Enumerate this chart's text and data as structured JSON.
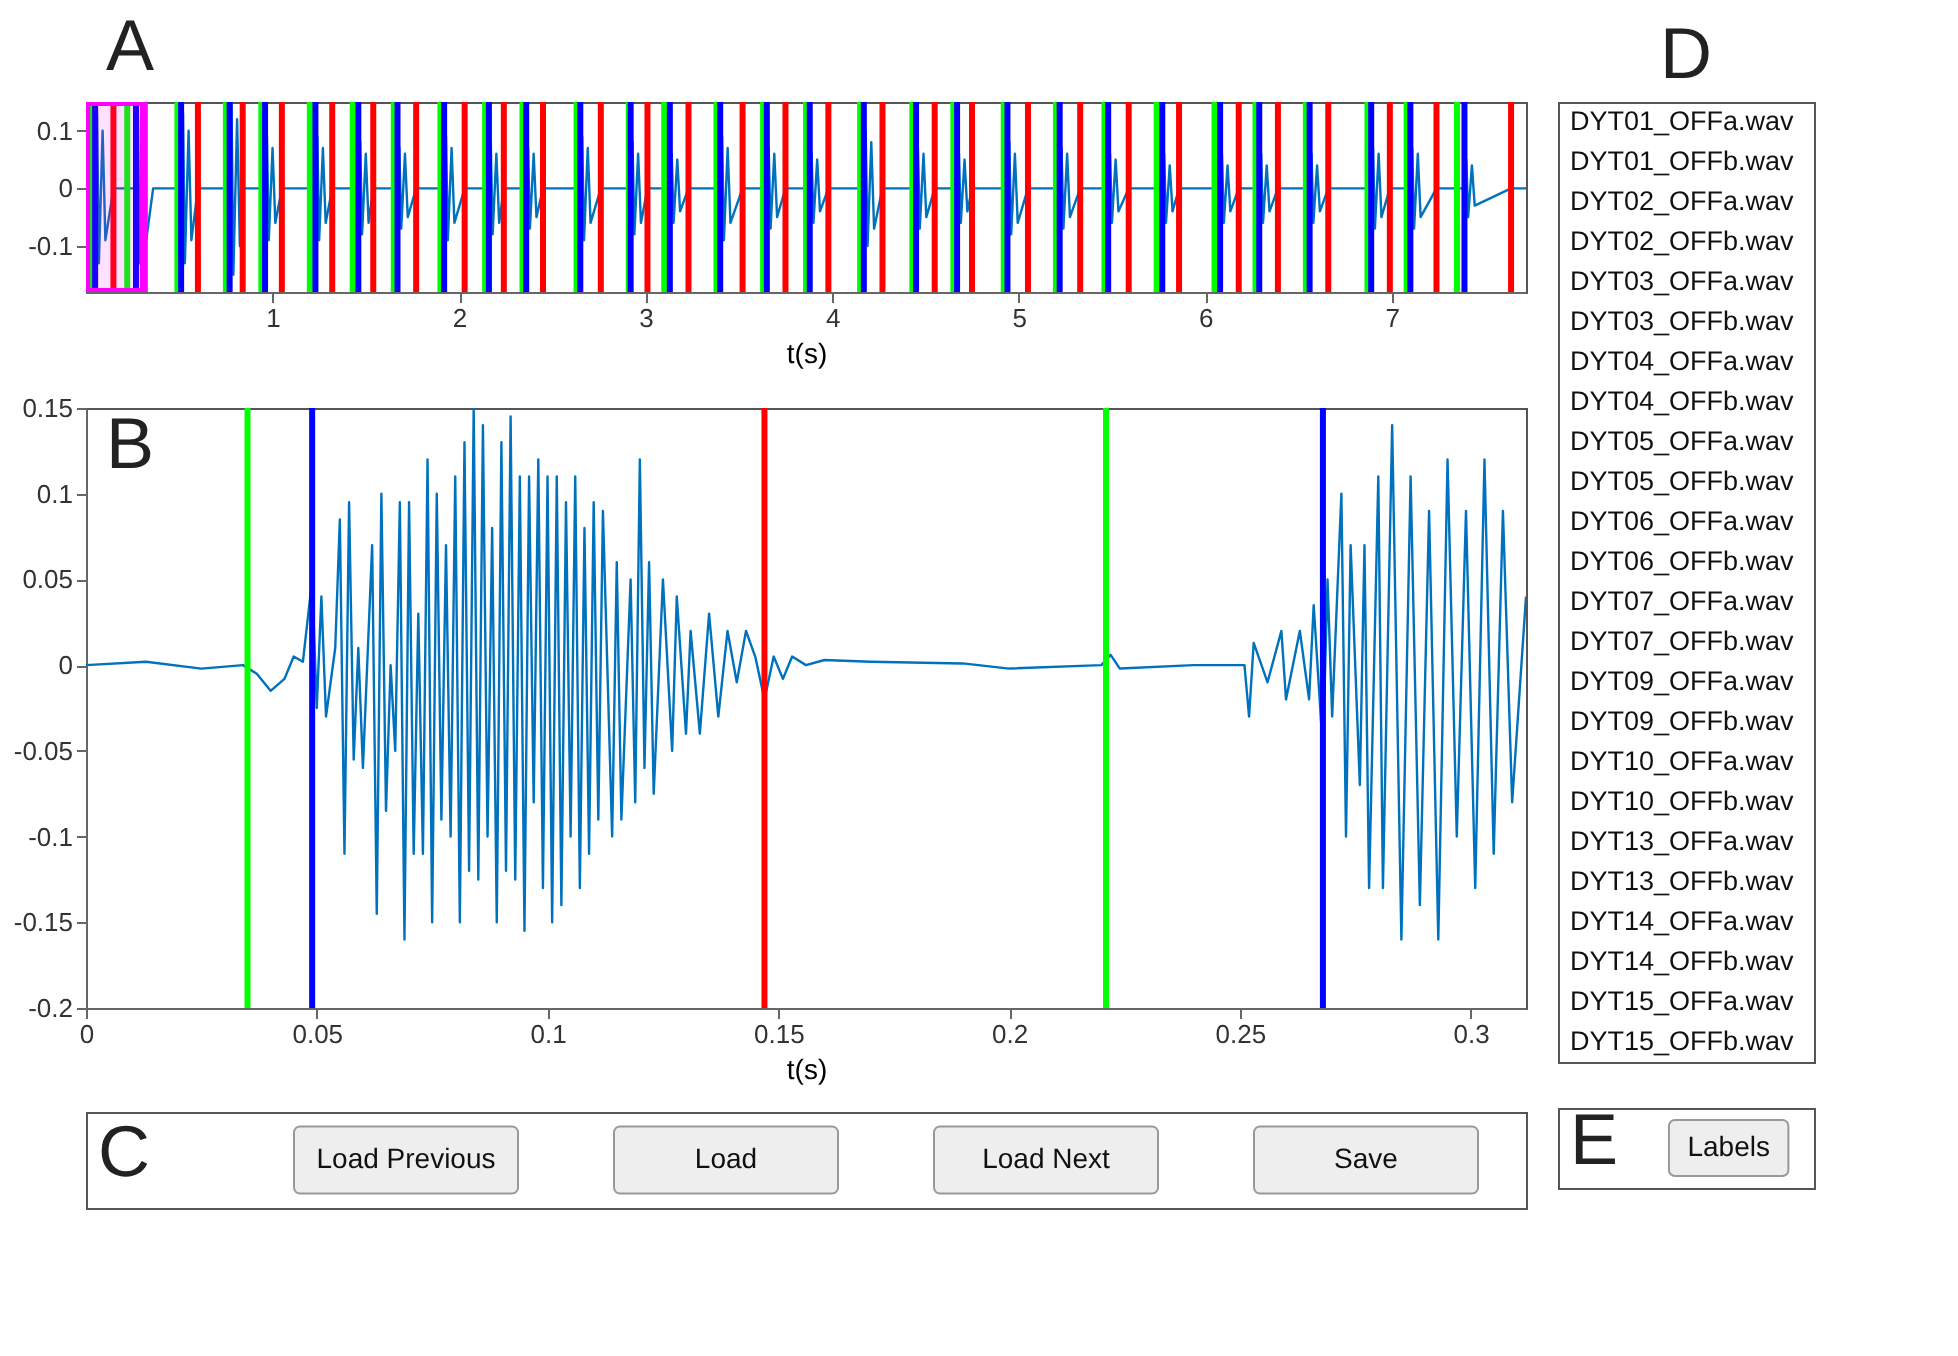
{
  "chart_data": [
    {
      "type": "line",
      "annotations": [
        "A"
      ],
      "xlabel": "t(s)",
      "xlim": [
        0,
        7.72
      ],
      "ylim": [
        -0.18,
        0.15
      ],
      "xticks": [
        1,
        2,
        3,
        4,
        5,
        6,
        7
      ],
      "yticks": [
        -0.1,
        0,
        0.1
      ],
      "grid": false,
      "series": [
        {
          "color": "#0072bd",
          "x": [
            0,
            0.049,
            0.059,
            0.069,
            0.089,
            0.104,
            0.147,
            0.268,
            0.278,
            0.288,
            0.308,
            0.323,
            0.36,
            0.51,
            0.52,
            0.53,
            0.55,
            0.565,
            0.6,
            0.77,
            0.78,
            0.79,
            0.81,
            0.825,
            0.84,
            0.96,
            0.97,
            0.98,
            1.0,
            1.015,
            1.05,
            1.23,
            1.24,
            1.25,
            1.27,
            1.285,
            1.32,
            1.46,
            1.47,
            1.48,
            1.5,
            1.515,
            1.54,
            1.67,
            1.68,
            1.69,
            1.71,
            1.725,
            1.77,
            1.92,
            1.93,
            1.94,
            1.96,
            1.975,
            2.03,
            2.16,
            2.17,
            2.18,
            2.2,
            2.215,
            2.24,
            2.36,
            2.37,
            2.38,
            2.4,
            2.415,
            2.45,
            2.65,
            2.66,
            2.67,
            2.69,
            2.705,
            2.76,
            2.92,
            2.93,
            2.94,
            2.96,
            2.975,
            3.01,
            3.13,
            3.14,
            3.15,
            3.17,
            3.185,
            3.23,
            3.4,
            3.41,
            3.42,
            3.44,
            3.455,
            3.52,
            3.65,
            3.66,
            3.67,
            3.69,
            3.705,
            3.75,
            3.88,
            3.89,
            3.9,
            3.92,
            3.935,
            3.98,
            4.17,
            4.18,
            4.19,
            4.21,
            4.225,
            4.27,
            4.45,
            4.46,
            4.47,
            4.49,
            4.505,
            4.55,
            4.67,
            4.68,
            4.69,
            4.71,
            4.725,
            4.75,
            4.94,
            4.95,
            4.96,
            4.98,
            4.995,
            5.05,
            5.22,
            5.23,
            5.24,
            5.26,
            5.275,
            5.33,
            5.48,
            5.49,
            5.5,
            5.52,
            5.535,
            5.59,
            5.77,
            5.78,
            5.79,
            5.81,
            5.825,
            5.86,
            6.08,
            6.09,
            6.1,
            6.12,
            6.135,
            6.18,
            6.29,
            6.3,
            6.31,
            6.33,
            6.345,
            6.39,
            6.56,
            6.57,
            6.58,
            6.6,
            6.615,
            6.66,
            6.89,
            6.9,
            6.91,
            6.93,
            6.945,
            6.99,
            7.1,
            7.11,
            7.12,
            7.14,
            7.155,
            7.24,
            7.39,
            7.4,
            7.41,
            7.43,
            7.445,
            7.64,
            7.72
          ],
          "values": [
            0,
            0,
            0.13,
            -0.13,
            0.1,
            -0.09,
            0,
            0,
            0.13,
            -0.13,
            0.1,
            -0.09,
            0,
            0,
            0.13,
            -0.13,
            0.1,
            -0.09,
            0,
            0,
            0.15,
            -0.15,
            0.12,
            -0.1,
            0,
            0,
            0.09,
            -0.09,
            0.07,
            -0.06,
            0,
            0,
            0.09,
            -0.09,
            0.07,
            -0.06,
            0,
            0,
            0.08,
            -0.08,
            0.06,
            -0.06,
            0,
            0,
            0.07,
            -0.07,
            0.06,
            -0.05,
            0,
            0,
            0.09,
            -0.09,
            0.07,
            -0.06,
            0,
            0,
            0.08,
            -0.08,
            0.06,
            -0.06,
            0,
            0,
            0.07,
            -0.07,
            0.06,
            -0.05,
            0,
            0,
            0.09,
            -0.09,
            0.07,
            -0.06,
            0,
            0,
            0.08,
            -0.08,
            0.06,
            -0.06,
            0,
            0,
            0.06,
            -0.06,
            0.05,
            -0.04,
            0,
            0,
            0.09,
            -0.09,
            0.07,
            -0.06,
            0,
            0,
            0.07,
            -0.07,
            0.06,
            -0.05,
            0,
            0,
            0.06,
            -0.06,
            0.05,
            -0.04,
            0,
            0,
            0.1,
            -0.1,
            0.08,
            -0.07,
            0,
            0,
            0.07,
            -0.07,
            0.06,
            -0.05,
            0,
            0,
            0.06,
            -0.06,
            0.05,
            -0.04,
            0,
            0,
            0.08,
            -0.08,
            0.06,
            -0.06,
            0,
            0,
            0.07,
            -0.07,
            0.06,
            -0.05,
            0,
            0,
            0.06,
            -0.06,
            0.05,
            -0.04,
            0,
            0,
            0.06,
            -0.06,
            0.04,
            -0.04,
            0,
            0,
            0.06,
            -0.06,
            0.04,
            -0.04,
            0,
            0,
            0.06,
            -0.06,
            0.04,
            -0.04,
            0,
            0,
            0.06,
            -0.06,
            0.04,
            -0.04,
            0,
            0,
            0.07,
            -0.07,
            0.06,
            -0.05,
            0,
            0,
            0.07,
            -0.07,
            0.06,
            -0.05,
            0,
            0,
            0.05,
            -0.05,
            0.04,
            -0.03,
            0,
            0
          ]
        }
      ],
      "bands": [
        {
          "axis": "x",
          "from": 0,
          "to": 0.31,
          "color": "#ff00ff"
        }
      ],
      "ref_lines": [
        {
          "axis": "x",
          "value": 0.035,
          "color": "#00ff00"
        },
        {
          "axis": "x",
          "value": 0.049,
          "color": "#0000ff"
        },
        {
          "axis": "x",
          "value": 0.147,
          "color": "#ff0000"
        },
        {
          "axis": "x",
          "value": 0.221,
          "color": "#00ff00"
        },
        {
          "axis": "x",
          "value": 0.268,
          "color": "#0000ff"
        },
        {
          "axis": "x",
          "value": 0.49,
          "color": "#00ff00"
        },
        {
          "axis": "x",
          "value": 0.51,
          "color": "#0000ff"
        },
        {
          "axis": "x",
          "value": 0.6,
          "color": "#ff0000"
        },
        {
          "axis": "x",
          "value": 0.75,
          "color": "#00ff00"
        },
        {
          "axis": "x",
          "value": 0.77,
          "color": "#0000ff"
        },
        {
          "axis": "x",
          "value": 0.84,
          "color": "#ff0000"
        },
        {
          "axis": "x",
          "value": 0.94,
          "color": "#00ff00"
        },
        {
          "axis": "x",
          "value": 0.96,
          "color": "#0000ff"
        },
        {
          "axis": "x",
          "value": 1.05,
          "color": "#ff0000"
        },
        {
          "axis": "x",
          "value": 1.2,
          "color": "#00ff00"
        },
        {
          "axis": "x",
          "value": 1.23,
          "color": "#0000ff"
        },
        {
          "axis": "x",
          "value": 1.32,
          "color": "#ff0000"
        },
        {
          "axis": "x",
          "value": 1.43,
          "color": "#00ff00"
        },
        {
          "axis": "x",
          "value": 1.46,
          "color": "#0000ff"
        },
        {
          "axis": "x",
          "value": 1.54,
          "color": "#ff0000"
        },
        {
          "axis": "x",
          "value": 1.65,
          "color": "#00ff00"
        },
        {
          "axis": "x",
          "value": 1.67,
          "color": "#0000ff"
        },
        {
          "axis": "x",
          "value": 1.77,
          "color": "#ff0000"
        },
        {
          "axis": "x",
          "value": 1.9,
          "color": "#00ff00"
        },
        {
          "axis": "x",
          "value": 1.92,
          "color": "#0000ff"
        },
        {
          "axis": "x",
          "value": 2.03,
          "color": "#ff0000"
        },
        {
          "axis": "x",
          "value": 2.14,
          "color": "#00ff00"
        },
        {
          "axis": "x",
          "value": 2.16,
          "color": "#0000ff"
        },
        {
          "axis": "x",
          "value": 2.24,
          "color": "#ff0000"
        },
        {
          "axis": "x",
          "value": 2.34,
          "color": "#00ff00"
        },
        {
          "axis": "x",
          "value": 2.36,
          "color": "#0000ff"
        },
        {
          "axis": "x",
          "value": 2.45,
          "color": "#ff0000"
        },
        {
          "axis": "x",
          "value": 2.63,
          "color": "#00ff00"
        },
        {
          "axis": "x",
          "value": 2.65,
          "color": "#0000ff"
        },
        {
          "axis": "x",
          "value": 2.76,
          "color": "#ff0000"
        },
        {
          "axis": "x",
          "value": 2.91,
          "color": "#00ff00"
        },
        {
          "axis": "x",
          "value": 2.92,
          "color": "#0000ff"
        },
        {
          "axis": "x",
          "value": 3.01,
          "color": "#ff0000"
        },
        {
          "axis": "x",
          "value": 3.1,
          "color": "#00ff00"
        },
        {
          "axis": "x",
          "value": 3.13,
          "color": "#0000ff"
        },
        {
          "axis": "x",
          "value": 3.23,
          "color": "#ff0000"
        },
        {
          "axis": "x",
          "value": 3.38,
          "color": "#00ff00"
        },
        {
          "axis": "x",
          "value": 3.4,
          "color": "#0000ff"
        },
        {
          "axis": "x",
          "value": 3.52,
          "color": "#ff0000"
        },
        {
          "axis": "x",
          "value": 3.63,
          "color": "#00ff00"
        },
        {
          "axis": "x",
          "value": 3.65,
          "color": "#0000ff"
        },
        {
          "axis": "x",
          "value": 3.75,
          "color": "#ff0000"
        },
        {
          "axis": "x",
          "value": 3.86,
          "color": "#00ff00"
        },
        {
          "axis": "x",
          "value": 3.88,
          "color": "#0000ff"
        },
        {
          "axis": "x",
          "value": 3.98,
          "color": "#ff0000"
        },
        {
          "axis": "x",
          "value": 4.15,
          "color": "#00ff00"
        },
        {
          "axis": "x",
          "value": 4.17,
          "color": "#0000ff"
        },
        {
          "axis": "x",
          "value": 4.27,
          "color": "#ff0000"
        },
        {
          "axis": "x",
          "value": 4.43,
          "color": "#00ff00"
        },
        {
          "axis": "x",
          "value": 4.45,
          "color": "#0000ff"
        },
        {
          "axis": "x",
          "value": 4.55,
          "color": "#ff0000"
        },
        {
          "axis": "x",
          "value": 4.65,
          "color": "#00ff00"
        },
        {
          "axis": "x",
          "value": 4.67,
          "color": "#0000ff"
        },
        {
          "axis": "x",
          "value": 4.75,
          "color": "#ff0000"
        },
        {
          "axis": "x",
          "value": 4.92,
          "color": "#00ff00"
        },
        {
          "axis": "x",
          "value": 4.94,
          "color": "#0000ff"
        },
        {
          "axis": "x",
          "value": 5.05,
          "color": "#ff0000"
        },
        {
          "axis": "x",
          "value": 5.2,
          "color": "#00ff00"
        },
        {
          "axis": "x",
          "value": 5.22,
          "color": "#0000ff"
        },
        {
          "axis": "x",
          "value": 5.33,
          "color": "#ff0000"
        },
        {
          "axis": "x",
          "value": 5.46,
          "color": "#00ff00"
        },
        {
          "axis": "x",
          "value": 5.48,
          "color": "#0000ff"
        },
        {
          "axis": "x",
          "value": 5.59,
          "color": "#ff0000"
        },
        {
          "axis": "x",
          "value": 5.74,
          "color": "#00ff00"
        },
        {
          "axis": "x",
          "value": 5.77,
          "color": "#0000ff"
        },
        {
          "axis": "x",
          "value": 5.86,
          "color": "#ff0000"
        },
        {
          "axis": "x",
          "value": 6.05,
          "color": "#00ff00"
        },
        {
          "axis": "x",
          "value": 6.08,
          "color": "#0000ff"
        },
        {
          "axis": "x",
          "value": 6.18,
          "color": "#ff0000"
        },
        {
          "axis": "x",
          "value": 6.27,
          "color": "#00ff00"
        },
        {
          "axis": "x",
          "value": 6.29,
          "color": "#0000ff"
        },
        {
          "axis": "x",
          "value": 6.39,
          "color": "#ff0000"
        },
        {
          "axis": "x",
          "value": 6.54,
          "color": "#00ff00"
        },
        {
          "axis": "x",
          "value": 6.56,
          "color": "#0000ff"
        },
        {
          "axis": "x",
          "value": 6.66,
          "color": "#ff0000"
        },
        {
          "axis": "x",
          "value": 6.87,
          "color": "#00ff00"
        },
        {
          "axis": "x",
          "value": 6.89,
          "color": "#0000ff"
        },
        {
          "axis": "x",
          "value": 6.99,
          "color": "#ff0000"
        },
        {
          "axis": "x",
          "value": 7.08,
          "color": "#00ff00"
        },
        {
          "axis": "x",
          "value": 7.1,
          "color": "#0000ff"
        },
        {
          "axis": "x",
          "value": 7.24,
          "color": "#ff0000"
        },
        {
          "axis": "x",
          "value": 7.35,
          "color": "#00ff00"
        },
        {
          "axis": "x",
          "value": 7.39,
          "color": "#0000ff"
        },
        {
          "axis": "x",
          "value": 7.64,
          "color": "#ff0000"
        }
      ]
    },
    {
      "type": "line",
      "annotations": [
        "B"
      ],
      "xlabel": "t(s)",
      "xlim": [
        0,
        0.312
      ],
      "ylim": [
        -0.2,
        0.15
      ],
      "xticks": [
        0,
        0.05,
        0.1,
        0.15,
        0.2,
        0.25,
        0.3
      ],
      "yticks": [
        -0.2,
        -0.15,
        -0.1,
        -0.05,
        0,
        0.05,
        0.1,
        0.15
      ],
      "grid": false,
      "series": [
        {
          "color": "#0072bd",
          "x": [
            0,
            0.013,
            0.025,
            0.034,
            0.037,
            0.04,
            0.043,
            0.045,
            0.047,
            0.049,
            0.05,
            0.051,
            0.052,
            0.054,
            0.055,
            0.056,
            0.057,
            0.058,
            0.059,
            0.06,
            0.062,
            0.063,
            0.064,
            0.065,
            0.066,
            0.067,
            0.068,
            0.069,
            0.07,
            0.071,
            0.072,
            0.073,
            0.074,
            0.075,
            0.076,
            0.077,
            0.078,
            0.079,
            0.08,
            0.081,
            0.082,
            0.083,
            0.084,
            0.085,
            0.086,
            0.087,
            0.088,
            0.089,
            0.09,
            0.091,
            0.092,
            0.093,
            0.094,
            0.095,
            0.096,
            0.097,
            0.098,
            0.099,
            0.1,
            0.101,
            0.102,
            0.103,
            0.104,
            0.105,
            0.106,
            0.107,
            0.108,
            0.109,
            0.11,
            0.111,
            0.112,
            0.114,
            0.115,
            0.116,
            0.118,
            0.119,
            0.12,
            0.121,
            0.122,
            0.123,
            0.125,
            0.127,
            0.128,
            0.13,
            0.131,
            0.133,
            0.135,
            0.137,
            0.139,
            0.141,
            0.143,
            0.145,
            0.147,
            0.149,
            0.151,
            0.153,
            0.156,
            0.16,
            0.17,
            0.19,
            0.2,
            0.22,
            0.222,
            0.224,
            0.24,
            0.251,
            0.252,
            0.253,
            0.256,
            0.259,
            0.26,
            0.263,
            0.265,
            0.266,
            0.268,
            0.269,
            0.27,
            0.272,
            0.273,
            0.274,
            0.276,
            0.277,
            0.278,
            0.28,
            0.281,
            0.283,
            0.285,
            0.287,
            0.289,
            0.291,
            0.293,
            0.295,
            0.297,
            0.299,
            0.301,
            0.303,
            0.305,
            0.307,
            0.309,
            0.312
          ],
          "values": [
            0,
            0.002,
            -0.002,
            0,
            -0.005,
            -0.015,
            -0.008,
            0.005,
            0.002,
            0.05,
            -0.025,
            0.04,
            -0.03,
            0.01,
            0.085,
            -0.11,
            0.095,
            -0.055,
            0.01,
            -0.06,
            0.07,
            -0.145,
            0.1,
            -0.085,
            0,
            -0.05,
            0.095,
            -0.16,
            0.095,
            -0.11,
            0.03,
            -0.11,
            0.12,
            -0.15,
            0.1,
            -0.09,
            0.07,
            -0.1,
            0.11,
            -0.15,
            0.13,
            -0.12,
            0.15,
            -0.125,
            0.14,
            -0.1,
            0.08,
            -0.15,
            0.13,
            -0.12,
            0.145,
            -0.125,
            0.11,
            -0.155,
            0.11,
            -0.08,
            0.12,
            -0.13,
            0.11,
            -0.15,
            0.11,
            -0.14,
            0.095,
            -0.1,
            0.11,
            -0.13,
            0.08,
            -0.11,
            0.095,
            -0.09,
            0.09,
            -0.1,
            0.06,
            -0.09,
            0.05,
            -0.08,
            0.12,
            -0.06,
            0.06,
            -0.075,
            0.05,
            -0.05,
            0.04,
            -0.04,
            0.02,
            -0.04,
            0.03,
            -0.03,
            0.02,
            -0.01,
            0.02,
            0.005,
            -0.02,
            0.005,
            -0.008,
            0.005,
            0,
            0.003,
            0.002,
            0.001,
            -0.002,
            0,
            0.006,
            -0.002,
            0,
            0,
            -0.03,
            0.013,
            -0.01,
            0.02,
            -0.02,
            0.02,
            -0.02,
            0.035,
            -0.05,
            0.05,
            -0.03,
            0.1,
            -0.1,
            0.07,
            -0.07,
            0.07,
            -0.13,
            0.11,
            -0.13,
            0.14,
            -0.16,
            0.11,
            -0.14,
            0.09,
            -0.16,
            0.12,
            -0.1,
            0.09,
            -0.13,
            0.12,
            -0.11,
            0.09,
            -0.08,
            0.04
          ]
        }
      ],
      "ref_lines": [
        {
          "axis": "x",
          "value": 0.035,
          "color": "#00ff00"
        },
        {
          "axis": "x",
          "value": 0.049,
          "color": "#0000ff"
        },
        {
          "axis": "x",
          "value": 0.147,
          "color": "#ff0000"
        },
        {
          "axis": "x",
          "value": 0.221,
          "color": "#00ff00"
        },
        {
          "axis": "x",
          "value": 0.268,
          "color": "#0000ff"
        }
      ]
    },
    {
      "type": "other",
      "annotations": [
        "C",
        "Load Previous",
        "Load",
        "Load Next",
        "Save"
      ]
    },
    {
      "type": "other",
      "annotations": [
        "D",
        "DYT01_OFFa.wav",
        "DYT01_OFFb.wav",
        "DYT02_OFFa.wav",
        "DYT02_OFFb.wav",
        "DYT03_OFFa.wav",
        "DYT03_OFFb.wav",
        "DYT04_OFFa.wav",
        "DYT04_OFFb.wav",
        "DYT05_OFFa.wav",
        "DYT05_OFFb.wav",
        "DYT06_OFFa.wav",
        "DYT06_OFFb.wav",
        "DYT07_OFFa.wav",
        "DYT07_OFFb.wav",
        "DYT09_OFFa.wav",
        "DYT09_OFFb.wav",
        "DYT10_OFFa.wav",
        "DYT10_OFFb.wav",
        "DYT13_OFFa.wav",
        "DYT13_OFFb.wav",
        "DYT14_OFFa.wav",
        "DYT14_OFFb.wav",
        "DYT15_OFFa.wav",
        "DYT15_OFFb.wav"
      ]
    },
    {
      "type": "other",
      "annotations": [
        "E",
        "Labels"
      ]
    }
  ]
}
